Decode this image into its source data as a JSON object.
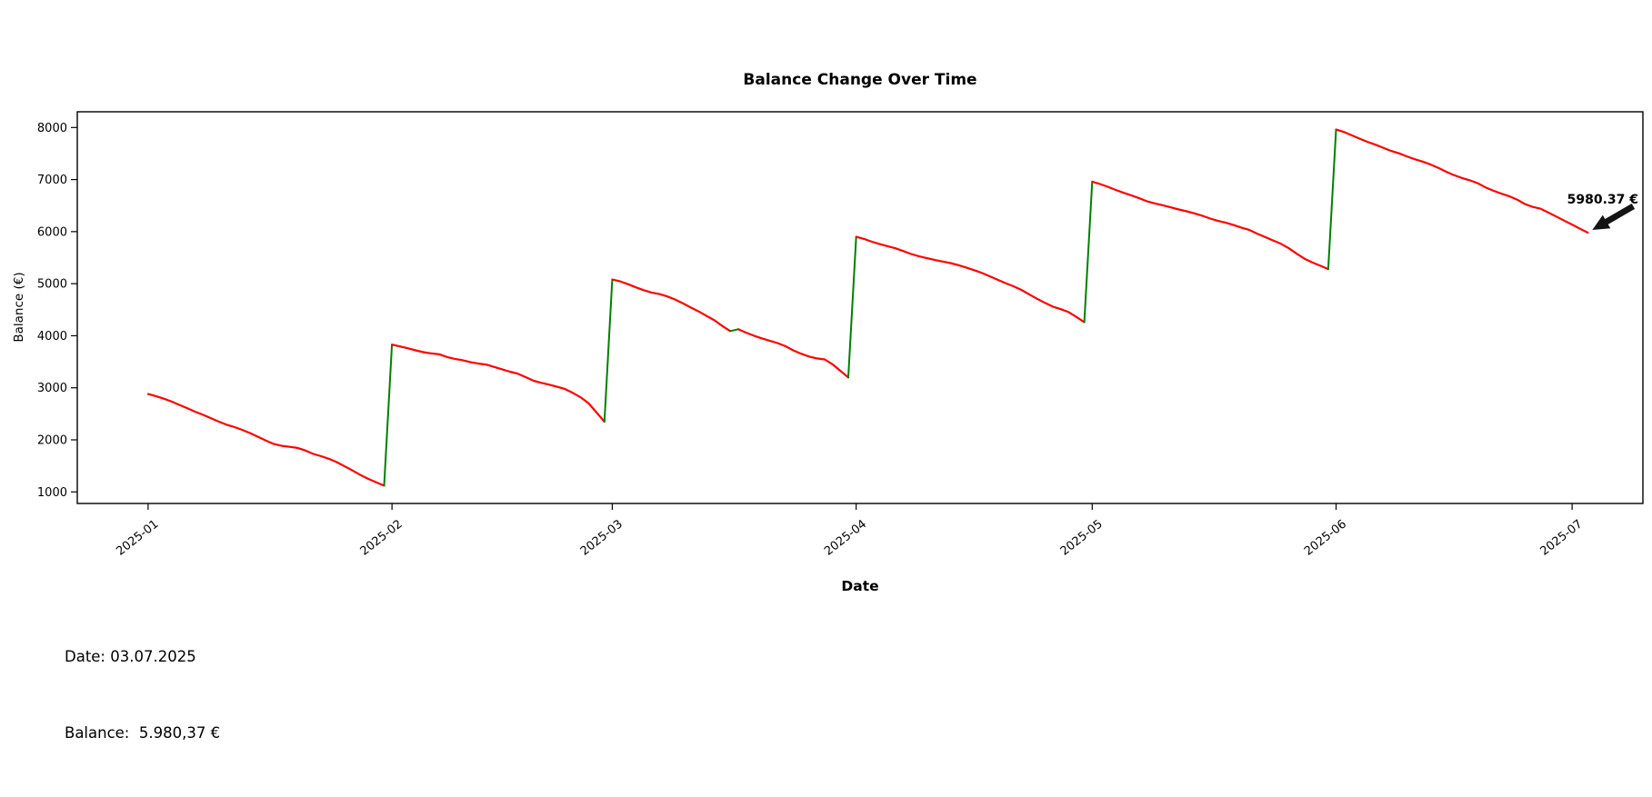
{
  "footer": {
    "date_line": "Date: 03.07.2025",
    "balance_line": "Balance:  5.980,37 €"
  },
  "chart_data": {
    "type": "line",
    "title": "Balance Change Over Time",
    "xlabel": "Date",
    "ylabel": "Balance (€)",
    "grid": false,
    "legend": null,
    "colors": {
      "increase": "#008000",
      "decrease": "#ff0000",
      "axis": "#000000",
      "annotation": "#141414"
    },
    "y_ticks": [
      1000,
      2000,
      3000,
      4000,
      5000,
      6000,
      7000,
      8000
    ],
    "x_ticks": [
      {
        "label": "2025-01",
        "date": "2025-01-01"
      },
      {
        "label": "2025-02",
        "date": "2025-02-01"
      },
      {
        "label": "2025-03",
        "date": "2025-03-01"
      },
      {
        "label": "2025-04",
        "date": "2025-04-01"
      },
      {
        "label": "2025-05",
        "date": "2025-05-01"
      },
      {
        "label": "2025-06",
        "date": "2025-06-01"
      },
      {
        "label": "2025-07",
        "date": "2025-07-01"
      }
    ],
    "xlim": [
      "2024-12-23",
      "2025-07-10"
    ],
    "ylim": [
      778,
      8302
    ],
    "annotation": {
      "text": "5980.37 €",
      "points_to_date": "2025-07-03",
      "points_to_value": 5980.37
    },
    "series": [
      {
        "name": "Balance",
        "points": [
          [
            "2025-01-01",
            2880
          ],
          [
            "2025-01-02",
            2840
          ],
          [
            "2025-01-03",
            2790
          ],
          [
            "2025-01-04",
            2735
          ],
          [
            "2025-01-05",
            2670
          ],
          [
            "2025-01-06",
            2605
          ],
          [
            "2025-01-07",
            2540
          ],
          [
            "2025-01-08",
            2480
          ],
          [
            "2025-01-09",
            2415
          ],
          [
            "2025-01-10",
            2350
          ],
          [
            "2025-01-11",
            2290
          ],
          [
            "2025-01-12",
            2245
          ],
          [
            "2025-01-13",
            2190
          ],
          [
            "2025-01-14",
            2125
          ],
          [
            "2025-01-15",
            2055
          ],
          [
            "2025-01-16",
            1985
          ],
          [
            "2025-01-17",
            1920
          ],
          [
            "2025-01-18",
            1885
          ],
          [
            "2025-01-19",
            1865
          ],
          [
            "2025-01-20",
            1845
          ],
          [
            "2025-01-21",
            1795
          ],
          [
            "2025-01-22",
            1730
          ],
          [
            "2025-01-23",
            1685
          ],
          [
            "2025-01-24",
            1635
          ],
          [
            "2025-01-25",
            1570
          ],
          [
            "2025-01-26",
            1490
          ],
          [
            "2025-01-27",
            1410
          ],
          [
            "2025-01-28",
            1325
          ],
          [
            "2025-01-29",
            1250
          ],
          [
            "2025-01-30",
            1185
          ],
          [
            "2025-01-31",
            1120
          ],
          [
            "2025-02-01",
            3830
          ],
          [
            "2025-02-02",
            3795
          ],
          [
            "2025-02-03",
            3760
          ],
          [
            "2025-02-04",
            3720
          ],
          [
            "2025-02-05",
            3685
          ],
          [
            "2025-02-06",
            3660
          ],
          [
            "2025-02-07",
            3645
          ],
          [
            "2025-02-08",
            3590
          ],
          [
            "2025-02-09",
            3555
          ],
          [
            "2025-02-10",
            3530
          ],
          [
            "2025-02-11",
            3490
          ],
          [
            "2025-02-12",
            3465
          ],
          [
            "2025-02-13",
            3445
          ],
          [
            "2025-02-14",
            3400
          ],
          [
            "2025-02-15",
            3355
          ],
          [
            "2025-02-16",
            3310
          ],
          [
            "2025-02-17",
            3270
          ],
          [
            "2025-02-18",
            3205
          ],
          [
            "2025-02-19",
            3135
          ],
          [
            "2025-02-20",
            3095
          ],
          [
            "2025-02-21",
            3060
          ],
          [
            "2025-02-22",
            3020
          ],
          [
            "2025-02-23",
            2975
          ],
          [
            "2025-02-24",
            2900
          ],
          [
            "2025-02-25",
            2815
          ],
          [
            "2025-02-26",
            2700
          ],
          [
            "2025-02-27",
            2525
          ],
          [
            "2025-02-28",
            2350
          ],
          [
            "2025-03-01",
            5080
          ],
          [
            "2025-03-02",
            5045
          ],
          [
            "2025-03-03",
            4990
          ],
          [
            "2025-03-04",
            4930
          ],
          [
            "2025-03-05",
            4875
          ],
          [
            "2025-03-06",
            4830
          ],
          [
            "2025-03-07",
            4800
          ],
          [
            "2025-03-08",
            4755
          ],
          [
            "2025-03-09",
            4695
          ],
          [
            "2025-03-10",
            4620
          ],
          [
            "2025-03-11",
            4540
          ],
          [
            "2025-03-12",
            4465
          ],
          [
            "2025-03-13",
            4380
          ],
          [
            "2025-03-14",
            4295
          ],
          [
            "2025-03-15",
            4185
          ],
          [
            "2025-03-16",
            4090
          ],
          [
            "2025-03-17",
            4125
          ],
          [
            "2025-03-18",
            4060
          ],
          [
            "2025-03-19",
            4000
          ],
          [
            "2025-03-20",
            3950
          ],
          [
            "2025-03-21",
            3905
          ],
          [
            "2025-03-22",
            3860
          ],
          [
            "2025-03-23",
            3800
          ],
          [
            "2025-03-24",
            3720
          ],
          [
            "2025-03-25",
            3655
          ],
          [
            "2025-03-26",
            3600
          ],
          [
            "2025-03-27",
            3565
          ],
          [
            "2025-03-28",
            3545
          ],
          [
            "2025-03-29",
            3450
          ],
          [
            "2025-03-30",
            3325
          ],
          [
            "2025-03-31",
            3200
          ],
          [
            "2025-04-01",
            5900
          ],
          [
            "2025-04-02",
            5860
          ],
          [
            "2025-04-03",
            5805
          ],
          [
            "2025-04-04",
            5760
          ],
          [
            "2025-04-05",
            5720
          ],
          [
            "2025-04-06",
            5680
          ],
          [
            "2025-04-07",
            5625
          ],
          [
            "2025-04-08",
            5570
          ],
          [
            "2025-04-09",
            5525
          ],
          [
            "2025-04-10",
            5490
          ],
          [
            "2025-04-11",
            5455
          ],
          [
            "2025-04-12",
            5425
          ],
          [
            "2025-04-13",
            5395
          ],
          [
            "2025-04-14",
            5355
          ],
          [
            "2025-04-15",
            5310
          ],
          [
            "2025-04-16",
            5260
          ],
          [
            "2025-04-17",
            5205
          ],
          [
            "2025-04-18",
            5140
          ],
          [
            "2025-04-19",
            5075
          ],
          [
            "2025-04-20",
            5010
          ],
          [
            "2025-04-21",
            4950
          ],
          [
            "2025-04-22",
            4880
          ],
          [
            "2025-04-23",
            4795
          ],
          [
            "2025-04-24",
            4710
          ],
          [
            "2025-04-25",
            4630
          ],
          [
            "2025-04-26",
            4560
          ],
          [
            "2025-04-27",
            4510
          ],
          [
            "2025-04-28",
            4455
          ],
          [
            "2025-04-29",
            4360
          ],
          [
            "2025-04-30",
            4260
          ],
          [
            "2025-05-01",
            6960
          ],
          [
            "2025-05-02",
            6915
          ],
          [
            "2025-05-03",
            6860
          ],
          [
            "2025-05-04",
            6800
          ],
          [
            "2025-05-05",
            6745
          ],
          [
            "2025-05-06",
            6695
          ],
          [
            "2025-05-07",
            6640
          ],
          [
            "2025-05-08",
            6580
          ],
          [
            "2025-05-09",
            6540
          ],
          [
            "2025-05-10",
            6505
          ],
          [
            "2025-05-11",
            6465
          ],
          [
            "2025-05-12",
            6425
          ],
          [
            "2025-05-13",
            6390
          ],
          [
            "2025-05-14",
            6350
          ],
          [
            "2025-05-15",
            6305
          ],
          [
            "2025-05-16",
            6250
          ],
          [
            "2025-05-17",
            6205
          ],
          [
            "2025-05-18",
            6170
          ],
          [
            "2025-05-19",
            6125
          ],
          [
            "2025-05-20",
            6075
          ],
          [
            "2025-05-21",
            6030
          ],
          [
            "2025-05-22",
            5960
          ],
          [
            "2025-05-23",
            5895
          ],
          [
            "2025-05-24",
            5830
          ],
          [
            "2025-05-25",
            5765
          ],
          [
            "2025-05-26",
            5680
          ],
          [
            "2025-05-27",
            5575
          ],
          [
            "2025-05-28",
            5480
          ],
          [
            "2025-05-29",
            5405
          ],
          [
            "2025-05-30",
            5345
          ],
          [
            "2025-05-31",
            5280
          ],
          [
            "2025-06-01",
            7960
          ],
          [
            "2025-06-02",
            7915
          ],
          [
            "2025-06-03",
            7850
          ],
          [
            "2025-06-04",
            7785
          ],
          [
            "2025-06-05",
            7725
          ],
          [
            "2025-06-06",
            7670
          ],
          [
            "2025-06-07",
            7610
          ],
          [
            "2025-06-08",
            7550
          ],
          [
            "2025-06-09",
            7505
          ],
          [
            "2025-06-10",
            7445
          ],
          [
            "2025-06-11",
            7390
          ],
          [
            "2025-06-12",
            7345
          ],
          [
            "2025-06-13",
            7290
          ],
          [
            "2025-06-14",
            7225
          ],
          [
            "2025-06-15",
            7150
          ],
          [
            "2025-06-16",
            7085
          ],
          [
            "2025-06-17",
            7030
          ],
          [
            "2025-06-18",
            6985
          ],
          [
            "2025-06-19",
            6930
          ],
          [
            "2025-06-20",
            6850
          ],
          [
            "2025-06-21",
            6785
          ],
          [
            "2025-06-22",
            6730
          ],
          [
            "2025-06-23",
            6680
          ],
          [
            "2025-06-24",
            6615
          ],
          [
            "2025-06-25",
            6530
          ],
          [
            "2025-06-26",
            6475
          ],
          [
            "2025-06-27",
            6440
          ],
          [
            "2025-06-28",
            6365
          ],
          [
            "2025-06-29",
            6290
          ],
          [
            "2025-06-30",
            6210
          ],
          [
            "2025-07-01",
            6135
          ],
          [
            "2025-07-02",
            6055
          ],
          [
            "2025-07-03",
            5980.37
          ]
        ]
      }
    ]
  }
}
